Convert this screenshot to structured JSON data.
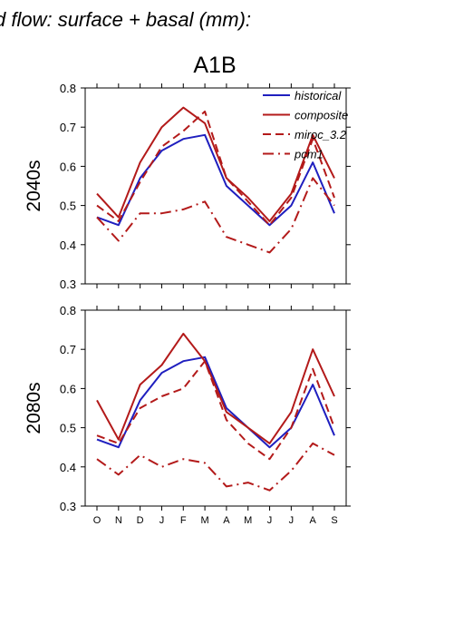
{
  "title": "d flow: surface + basal (mm):",
  "scenario": "A1B",
  "colors": {
    "historical": "#1f1fbf",
    "model": "#b31a1a"
  },
  "chart_data": [
    {
      "type": "line",
      "row_label": "2040s",
      "categories": [
        "O",
        "N",
        "D",
        "J",
        "F",
        "M",
        "A",
        "M",
        "J",
        "J",
        "A",
        "S"
      ],
      "ylim": [
        0.3,
        0.8
      ],
      "yticks": [
        "0.3",
        "0.4",
        "0.5",
        "0.6",
        "0.7",
        "0.8"
      ],
      "legend_position": "top-right",
      "series": [
        {
          "name": "historical",
          "style": "solid",
          "color": "#1f1fbf",
          "values": [
            0.47,
            0.45,
            0.57,
            0.64,
            0.67,
            0.68,
            0.55,
            0.5,
            0.45,
            0.5,
            0.61,
            0.48
          ]
        },
        {
          "name": "composite",
          "style": "solid",
          "color": "#b31a1a",
          "values": [
            0.53,
            0.47,
            0.61,
            0.7,
            0.75,
            0.71,
            0.57,
            0.52,
            0.46,
            0.53,
            0.68,
            0.57
          ]
        },
        {
          "name": "miroc_3.2",
          "style": "dashed",
          "color": "#b31a1a",
          "values": [
            0.5,
            0.46,
            0.56,
            0.65,
            0.69,
            0.74,
            0.57,
            0.51,
            0.45,
            0.52,
            0.67,
            0.52
          ]
        },
        {
          "name": "pcm1",
          "style": "dashdot",
          "color": "#b31a1a",
          "values": [
            0.47,
            0.41,
            0.48,
            0.48,
            0.49,
            0.51,
            0.42,
            0.4,
            0.38,
            0.44,
            0.57,
            0.5
          ]
        }
      ]
    },
    {
      "type": "line",
      "row_label": "2080s",
      "categories": [
        "O",
        "N",
        "D",
        "J",
        "F",
        "M",
        "A",
        "M",
        "J",
        "J",
        "A",
        "S"
      ],
      "ylim": [
        0.3,
        0.8
      ],
      "yticks": [
        "0.3",
        "0.4",
        "0.5",
        "0.6",
        "0.7",
        "0.8"
      ],
      "series": [
        {
          "name": "historical",
          "style": "solid",
          "color": "#1f1fbf",
          "values": [
            0.47,
            0.45,
            0.57,
            0.64,
            0.67,
            0.68,
            0.55,
            0.5,
            0.45,
            0.5,
            0.61,
            0.48
          ]
        },
        {
          "name": "composite",
          "style": "solid",
          "color": "#b31a1a",
          "values": [
            0.57,
            0.47,
            0.61,
            0.66,
            0.74,
            0.67,
            0.54,
            0.5,
            0.46,
            0.54,
            0.7,
            0.58
          ]
        },
        {
          "name": "miroc_3.2",
          "style": "dashed",
          "color": "#b31a1a",
          "values": [
            0.48,
            0.46,
            0.55,
            0.58,
            0.6,
            0.67,
            0.52,
            0.46,
            0.42,
            0.5,
            0.65,
            0.5
          ]
        },
        {
          "name": "pcm1",
          "style": "dashdot",
          "color": "#b31a1a",
          "values": [
            0.42,
            0.38,
            0.43,
            0.4,
            0.42,
            0.41,
            0.35,
            0.36,
            0.34,
            0.39,
            0.46,
            0.43
          ]
        }
      ]
    }
  ]
}
